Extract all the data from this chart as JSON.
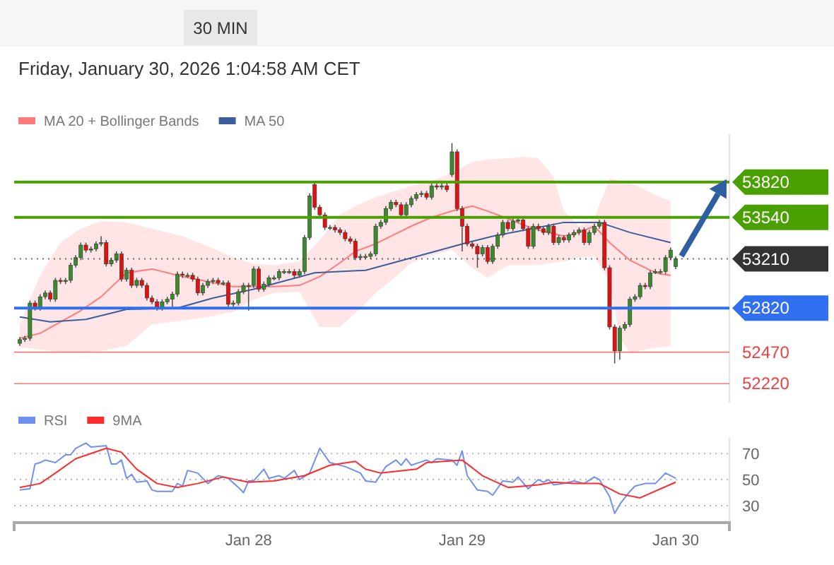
{
  "chart_data": [
    {
      "type": "candlestick",
      "subtitle": "Friday, January 30, 2026 1:04:58 AM CET",
      "annotations": [
        "30 MIN"
      ],
      "legend": "top left",
      "tick_labels": "y",
      "ylim": [
        52070,
        54200
      ],
      "yticks": [
        53820,
        53540,
        53210,
        52820,
        52470,
        52220
      ],
      "categories": [
        null,
        null,
        null,
        null,
        null,
        null,
        null,
        null,
        null,
        null,
        null,
        null,
        null,
        null,
        null,
        null,
        null,
        null,
        null,
        null,
        null,
        null,
        null,
        null,
        null,
        null,
        null,
        null,
        null,
        null,
        null,
        null,
        null,
        null,
        null,
        null,
        null,
        null,
        null,
        null,
        null,
        null,
        null,
        null,
        null,
        null,
        null,
        null,
        null,
        null,
        null,
        null,
        null,
        null,
        null,
        null,
        null,
        null,
        null,
        null,
        null,
        null,
        null,
        null,
        null,
        null,
        null,
        null,
        null,
        null,
        null,
        null,
        null,
        null,
        null,
        null,
        null,
        null,
        null,
        null,
        null,
        null,
        null,
        null,
        null,
        null,
        null,
        null,
        null,
        null,
        null,
        null,
        null,
        null,
        null,
        null,
        null,
        null,
        null,
        null,
        null,
        null,
        null,
        null,
        null,
        null,
        null,
        null,
        null,
        null,
        null,
        null,
        null,
        null,
        null,
        null,
        null,
        null,
        null,
        null,
        null,
        null,
        null,
        null,
        null,
        null,
        null,
        null,
        null,
        null
      ],
      "ohlc": [
        [
          52540,
          52590,
          52520,
          52570
        ],
        [
          52570,
          52600,
          52550,
          52580
        ],
        [
          52580,
          52880,
          52560,
          52860
        ],
        [
          52860,
          52880,
          52800,
          52820
        ],
        [
          52820,
          52930,
          52800,
          52910
        ],
        [
          52910,
          52960,
          52890,
          52940
        ],
        [
          52940,
          52960,
          52870,
          52890
        ],
        [
          52890,
          53060,
          52870,
          53040
        ],
        [
          53040,
          53060,
          53010,
          53030
        ],
        [
          53030,
          53060,
          53010,
          53040
        ],
        [
          53040,
          53180,
          53020,
          53160
        ],
        [
          53160,
          53240,
          53140,
          53220
        ],
        [
          53220,
          53340,
          53200,
          53320
        ],
        [
          53320,
          53340,
          53260,
          53280
        ],
        [
          53280,
          53310,
          53260,
          53290
        ],
        [
          53290,
          53350,
          53270,
          53330
        ],
        [
          53330,
          53390,
          53310,
          53340
        ],
        [
          53340,
          53360,
          53150,
          53170
        ],
        [
          53170,
          53220,
          53150,
          53200
        ],
        [
          53200,
          53270,
          53180,
          53250
        ],
        [
          53250,
          53270,
          53030,
          53050
        ],
        [
          53050,
          53140,
          53030,
          53120
        ],
        [
          53120,
          53140,
          52980,
          53000
        ],
        [
          53000,
          53060,
          52980,
          53040
        ],
        [
          53040,
          53060,
          52980,
          53000
        ],
        [
          53000,
          53020,
          52880,
          52900
        ],
        [
          52900,
          52920,
          52850,
          52870
        ],
        [
          52870,
          52890,
          52800,
          52820
        ],
        [
          52820,
          52890,
          52800,
          52870
        ],
        [
          52870,
          52910,
          52850,
          52890
        ],
        [
          52890,
          52950,
          52830,
          52930
        ],
        [
          52930,
          53110,
          52910,
          53090
        ],
        [
          53090,
          53110,
          53060,
          53080
        ],
        [
          53080,
          53100,
          53060,
          53080
        ],
        [
          53080,
          53100,
          53030,
          53050
        ],
        [
          53050,
          53070,
          52920,
          52940
        ],
        [
          52940,
          53020,
          52920,
          53000
        ],
        [
          53000,
          53050,
          52980,
          53030
        ],
        [
          53030,
          53060,
          53010,
          53040
        ],
        [
          53040,
          53060,
          53000,
          53020
        ],
        [
          53020,
          53040,
          53000,
          53020
        ],
        [
          53020,
          53040,
          52830,
          52850
        ],
        [
          52850,
          52880,
          52830,
          52860
        ],
        [
          52860,
          52970,
          52840,
          52950
        ],
        [
          52950,
          53020,
          52930,
          53000
        ],
        [
          53000,
          53020,
          52800,
          53000
        ],
        [
          53000,
          53150,
          52980,
          53130
        ],
        [
          53130,
          53150,
          52950,
          52970
        ],
        [
          52970,
          53030,
          52950,
          53010
        ],
        [
          53010,
          53080,
          52990,
          53060
        ],
        [
          53060,
          53080,
          53040,
          53060
        ],
        [
          53060,
          53130,
          53040,
          53110
        ],
        [
          53110,
          53130,
          53090,
          53110
        ],
        [
          53110,
          53130,
          53090,
          53110
        ],
        [
          53110,
          53130,
          53060,
          53080
        ],
        [
          53080,
          53130,
          53060,
          53110
        ],
        [
          53110,
          53400,
          53090,
          53380
        ],
        [
          53380,
          53730,
          53360,
          53710
        ],
        [
          53800,
          53830,
          53600,
          53620
        ],
        [
          53620,
          53640,
          53540,
          53560
        ],
        [
          53560,
          53580,
          53440,
          53460
        ],
        [
          53460,
          53480,
          53440,
          53460
        ],
        [
          53460,
          53480,
          53420,
          53440
        ],
        [
          53440,
          53460,
          53400,
          53420
        ],
        [
          53420,
          53440,
          53350,
          53370
        ],
        [
          53370,
          53390,
          53330,
          53350
        ],
        [
          53350,
          53370,
          53200,
          53220
        ],
        [
          53220,
          53250,
          53200,
          53230
        ],
        [
          53230,
          53250,
          53210,
          53230
        ],
        [
          53230,
          53270,
          53210,
          53250
        ],
        [
          53250,
          53490,
          53230,
          53470
        ],
        [
          53470,
          53520,
          53450,
          53500
        ],
        [
          53500,
          53630,
          53480,
          53610
        ],
        [
          53610,
          53680,
          53590,
          53660
        ],
        [
          53660,
          53680,
          53620,
          53640
        ],
        [
          53640,
          53660,
          53540,
          53560
        ],
        [
          53560,
          53660,
          53540,
          53640
        ],
        [
          53640,
          53710,
          53620,
          53690
        ],
        [
          53690,
          53740,
          53670,
          53720
        ],
        [
          53720,
          53750,
          53700,
          53730
        ],
        [
          53730,
          53750,
          53680,
          53700
        ],
        [
          53700,
          53810,
          53680,
          53790
        ],
        [
          53790,
          53810,
          53760,
          53780
        ],
        [
          53780,
          53810,
          53760,
          53790
        ],
        [
          53790,
          53810,
          53740,
          53760
        ],
        [
          53880,
          54130,
          53860,
          54060
        ],
        [
          54060,
          54080,
          53590,
          53610
        ],
        [
          53610,
          53630,
          53270,
          53470
        ],
        [
          53470,
          53490,
          53310,
          53330
        ],
        [
          53330,
          53350,
          53290,
          53310
        ],
        [
          53310,
          53330,
          53140,
          53250
        ],
        [
          53250,
          53320,
          53230,
          53300
        ],
        [
          53300,
          53320,
          53170,
          53190
        ],
        [
          53190,
          53330,
          53170,
          53310
        ],
        [
          53310,
          53420,
          53290,
          53400
        ],
        [
          53400,
          53520,
          53380,
          53500
        ],
        [
          53500,
          53520,
          53430,
          53450
        ],
        [
          53450,
          53530,
          53430,
          53510
        ],
        [
          53510,
          53540,
          53500,
          53520
        ],
        [
          53520,
          53540,
          53430,
          53450
        ],
        [
          53450,
          53470,
          53290,
          53310
        ],
        [
          53310,
          53490,
          53290,
          53470
        ],
        [
          53470,
          53490,
          53430,
          53450
        ],
        [
          53450,
          53470,
          53400,
          53420
        ],
        [
          53420,
          53490,
          53400,
          53470
        ],
        [
          53470,
          53490,
          53320,
          53340
        ],
        [
          53340,
          53400,
          53320,
          53380
        ],
        [
          53380,
          53400,
          53340,
          53360
        ],
        [
          53360,
          53420,
          53340,
          53400
        ],
        [
          53400,
          53440,
          53380,
          53420
        ],
        [
          53420,
          53460,
          53400,
          53440
        ],
        [
          53440,
          53460,
          53320,
          53340
        ],
        [
          53340,
          53440,
          53320,
          53420
        ],
        [
          53420,
          53490,
          53400,
          53470
        ],
        [
          53470,
          53520,
          53450,
          53500
        ],
        [
          53500,
          53520,
          53120,
          53140
        ],
        [
          53140,
          53160,
          52650,
          52670
        ],
        [
          52670,
          52690,
          52380,
          52480
        ],
        [
          52480,
          52680,
          52410,
          52660
        ],
        [
          52660,
          52710,
          52640,
          52690
        ],
        [
          52690,
          52910,
          52670,
          52890
        ],
        [
          52890,
          52930,
          52870,
          52910
        ],
        [
          52910,
          53020,
          52890,
          53000
        ],
        [
          53000,
          53020,
          52970,
          52990
        ],
        [
          52990,
          53120,
          52970,
          53100
        ],
        [
          53100,
          53130,
          53090,
          53110
        ],
        [
          53110,
          53130,
          53090,
          53110
        ],
        [
          53110,
          53240,
          53090,
          53220
        ],
        [
          53220,
          53300,
          53200,
          53280
        ],
        [
          53150,
          53230,
          53130,
          53210
        ]
      ],
      "series": [
        {
          "name": "MA 20 + Bollinger Bands",
          "type": "line",
          "color": "#ff7b7b",
          "values": [
            52580,
            null,
            null,
            null,
            52620,
            null,
            null,
            null,
            52710,
            null,
            null,
            null,
            52800,
            null,
            null,
            null,
            52910,
            null,
            null,
            null,
            null,
            53100,
            null,
            null,
            null,
            null,
            53130,
            null,
            null,
            null,
            null,
            null,
            53070,
            null,
            null,
            null,
            null,
            53030,
            null,
            null,
            null,
            null,
            52990,
            null,
            null,
            null,
            52990,
            null,
            null,
            null,
            52990,
            null,
            null,
            null,
            null,
            53000,
            null,
            null,
            null,
            53070,
            null,
            null,
            null,
            53180,
            null,
            null,
            53270,
            null,
            null,
            null,
            53330,
            null,
            null,
            null,
            53410,
            null,
            null,
            53470,
            null,
            null,
            null,
            53540,
            null,
            null,
            null,
            53590,
            null,
            null,
            null,
            53630,
            null,
            null,
            53590,
            null,
            null,
            null,
            53530,
            null,
            null,
            53480,
            null,
            null,
            53440,
            null,
            null,
            53410,
            null,
            53390,
            null,
            null,
            53420,
            null,
            null,
            53470,
            null,
            null,
            53340,
            null,
            53270,
            null,
            53200,
            null,
            53160,
            null,
            53120,
            null,
            53090,
            null,
            53080,
            null
          ],
          "upper": [
            52690,
            null,
            null,
            null,
            53080,
            null,
            null,
            null,
            53340,
            null,
            null,
            null,
            53450,
            null,
            null,
            null,
            53510,
            null,
            null,
            null,
            null,
            53500,
            null,
            null,
            null,
            null,
            53450,
            null,
            null,
            null,
            null,
            null,
            53390,
            null,
            null,
            null,
            null,
            53310,
            null,
            null,
            null,
            null,
            53220,
            null,
            null,
            null,
            53170,
            null,
            null,
            null,
            53160,
            null,
            null,
            null,
            null,
            53190,
            null,
            null,
            null,
            53360,
            null,
            null,
            null,
            53560,
            null,
            null,
            53630,
            null,
            null,
            null,
            53700,
            null,
            null,
            null,
            53750,
            null,
            null,
            53790,
            null,
            null,
            null,
            53830,
            null,
            null,
            null,
            53890,
            null,
            null,
            null,
            53980,
            null,
            null,
            54000,
            null,
            null,
            null,
            54010,
            null,
            null,
            54020,
            null,
            null,
            54010,
            null,
            null,
            53860,
            null,
            53590,
            null,
            null,
            53470,
            null,
            null,
            53530,
            null,
            null,
            53850,
            null,
            53830,
            null,
            53810,
            null,
            53780,
            null,
            53740,
            null,
            53700,
            null,
            53670,
            null
          ],
          "lower": [
            52510,
            null,
            null,
            null,
            52490,
            null,
            null,
            null,
            52470,
            null,
            null,
            null,
            52470,
            null,
            null,
            null,
            52480,
            null,
            null,
            null,
            null,
            52520,
            null,
            null,
            null,
            null,
            52690,
            null,
            null,
            null,
            null,
            null,
            52720,
            null,
            null,
            null,
            null,
            52750,
            null,
            null,
            null,
            null,
            52790,
            null,
            null,
            null,
            52890,
            null,
            null,
            null,
            52940,
            null,
            null,
            null,
            null,
            52950,
            null,
            null,
            null,
            52670,
            null,
            null,
            null,
            52670,
            null,
            null,
            52780,
            null,
            null,
            null,
            52940,
            null,
            null,
            null,
            53070,
            null,
            null,
            53180,
            null,
            null,
            null,
            53240,
            null,
            null,
            null,
            53280,
            null,
            null,
            null,
            53140,
            null,
            null,
            53060,
            null,
            null,
            null,
            53160,
            null,
            null,
            53160,
            null,
            null,
            53160,
            null,
            null,
            53180,
            null,
            53190,
            null,
            null,
            53220,
            null,
            null,
            53230,
            null,
            null,
            53030,
            null,
            52580,
            null,
            52470,
            null,
            52480,
            null,
            52500,
            null,
            52510,
            null,
            52520,
            null
          ]
        },
        {
          "name": "MA 50",
          "type": "line",
          "color": "#3b5f9e",
          "values": [
            52750,
            null,
            null,
            null,
            null,
            null,
            52710,
            null,
            null,
            null,
            null,
            null,
            null,
            52730,
            null,
            null,
            null,
            null,
            null,
            null,
            null,
            52810,
            null,
            null,
            null,
            null,
            null,
            null,
            null,
            null,
            null,
            52820,
            null,
            null,
            null,
            null,
            null,
            null,
            52900,
            null,
            null,
            null,
            null,
            null,
            null,
            null,
            52970,
            null,
            null,
            null,
            null,
            null,
            null,
            null,
            null,
            null,
            null,
            null,
            53100,
            null,
            null,
            null,
            null,
            null,
            null,
            null,
            null,
            null,
            53120,
            null,
            null,
            null,
            null,
            null,
            null,
            null,
            null,
            null,
            null,
            53240,
            null,
            null,
            null,
            null,
            null,
            null,
            null,
            null,
            53340,
            null,
            null,
            null,
            null,
            53390,
            null,
            null,
            null,
            null,
            null,
            null,
            null,
            null,
            53460,
            null,
            null,
            null,
            null,
            53500,
            null,
            null,
            null,
            null,
            null,
            null,
            53500,
            null,
            null,
            null,
            null,
            null,
            53420,
            null,
            null,
            null,
            null,
            null,
            null,
            null,
            53340,
            null
          ]
        }
      ],
      "ref_lines": [
        {
          "axis": "y",
          "value": 53820,
          "color": "#4aa000",
          "line_style": "solid"
        },
        {
          "axis": "y",
          "value": 53540,
          "color": "#4aa000",
          "line_style": "solid"
        },
        {
          "axis": "y",
          "value": 53210,
          "color": "#333333",
          "line_style": "dotted"
        },
        {
          "axis": "y",
          "value": 52820,
          "color": "#2f6ff0",
          "line_style": "solid"
        },
        {
          "axis": "y",
          "value": 52470,
          "color": "#f04040"
        },
        {
          "axis": "y",
          "value": 52220,
          "color": "#f04040"
        }
      ]
    },
    {
      "type": "line",
      "legend": "top left",
      "grid": "y",
      "ylim": [
        17,
        82
      ],
      "yticks": [
        30,
        50,
        70
      ],
      "categories": [
        null,
        null,
        null,
        null,
        null,
        null,
        null,
        null,
        null,
        null,
        null,
        null,
        null,
        null,
        null,
        null,
        null,
        null,
        null,
        null,
        null,
        null,
        null,
        null,
        null,
        null,
        null,
        null,
        null,
        null,
        null,
        null,
        null,
        null,
        null,
        null,
        null,
        null,
        null,
        null,
        null,
        null,
        null,
        null,
        null,
        "Jan 28",
        null,
        null,
        null,
        null,
        null,
        null,
        null,
        null,
        null,
        null,
        null,
        null,
        null,
        null,
        null,
        null,
        null,
        null,
        null,
        null,
        null,
        null,
        null,
        null,
        null,
        null,
        null,
        null,
        null,
        null,
        null,
        null,
        null,
        null,
        null,
        null,
        null,
        null,
        null,
        null,
        null,
        "Jan 29",
        null,
        null,
        null,
        null,
        null,
        null,
        null,
        null,
        null,
        null,
        null,
        null,
        null,
        null,
        null,
        null,
        null,
        null,
        null,
        null,
        null,
        null,
        null,
        null,
        null,
        null,
        null,
        null,
        null,
        null,
        null,
        null,
        null,
        null,
        null,
        null,
        null,
        null,
        null,
        null,
        null,
        "Jan 30"
      ],
      "series": [
        {
          "name": "RSI",
          "color": "#7090f0",
          "values": [
            42,
            null,
            43,
            62,
            63,
            65,
            null,
            63,
            null,
            69,
            69,
            74,
            null,
            78,
            75,
            null,
            null,
            76,
            62,
            62,
            65,
            51,
            54,
            48,
            null,
            49,
            42,
            41,
            null,
            null,
            41,
            47,
            45,
            57,
            null,
            55,
            null,
            47,
            null,
            53,
            null,
            51,
            null,
            44,
            40,
            49,
            49,
            null,
            58,
            51,
            null,
            53,
            51,
            null,
            57,
            50,
            null,
            55,
            null,
            74,
            null,
            63,
            null,
            null,
            60,
            null,
            null,
            55,
            49,
            null,
            48,
            null,
            60,
            null,
            65,
            61,
            66,
            61,
            null,
            null,
            65,
            63,
            66,
            null,
            null,
            65,
            61,
            72,
            53,
            null,
            42,
            null,
            41,
            38,
            null,
            49,
            null,
            48,
            52,
            null,
            43,
            null,
            50,
            48,
            50,
            46,
            null,
            47,
            null,
            49,
            null,
            47,
            null,
            52,
            50,
            null,
            37,
            24,
            31,
            null,
            41,
            45,
            null,
            47,
            null,
            47,
            null,
            55,
            null,
            51
          ]
        },
        {
          "name": "9MA",
          "color": "#ff2a2a",
          "values": [
            44,
            null,
            null,
            null,
            47,
            null,
            null,
            55,
            null,
            null,
            null,
            66,
            null,
            null,
            null,
            null,
            null,
            74,
            null,
            null,
            71,
            null,
            null,
            58,
            null,
            null,
            null,
            47,
            null,
            null,
            null,
            44,
            null,
            null,
            null,
            47,
            null,
            null,
            null,
            null,
            52,
            null,
            null,
            null,
            null,
            48,
            null,
            null,
            null,
            null,
            49,
            null,
            null,
            null,
            null,
            null,
            53,
            null,
            null,
            null,
            null,
            61,
            null,
            null,
            null,
            null,
            64,
            null,
            58,
            null,
            null,
            55,
            null,
            null,
            null,
            null,
            null,
            null,
            58,
            null,
            63,
            null,
            null,
            null,
            null,
            null,
            null,
            65,
            null,
            null,
            null,
            53,
            null,
            null,
            null,
            null,
            44,
            null,
            null,
            null,
            null,
            null,
            46,
            null,
            null,
            48,
            null,
            null,
            null,
            47,
            null,
            null,
            null,
            null,
            47,
            null,
            null,
            null,
            39,
            null,
            null,
            null,
            36,
            null,
            null,
            null,
            null,
            null,
            null,
            48
          ]
        }
      ]
    }
  ]
}
